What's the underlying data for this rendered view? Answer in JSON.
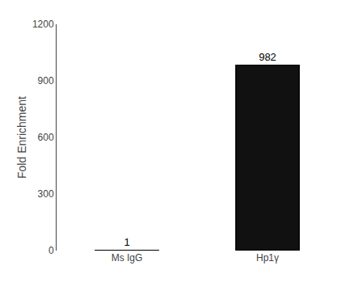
{
  "chart_data": {
    "type": "bar",
    "categories": [
      "Ms IgG",
      "Hp1γ"
    ],
    "values": [
      1,
      982
    ],
    "colors": [
      "#ffffff",
      "#111111"
    ],
    "ylabel": "Fold Enrichment",
    "ylim": [
      0,
      1200
    ],
    "yticks": [
      0,
      300,
      600,
      900,
      1200
    ],
    "data_labels": true,
    "grid": false
  }
}
